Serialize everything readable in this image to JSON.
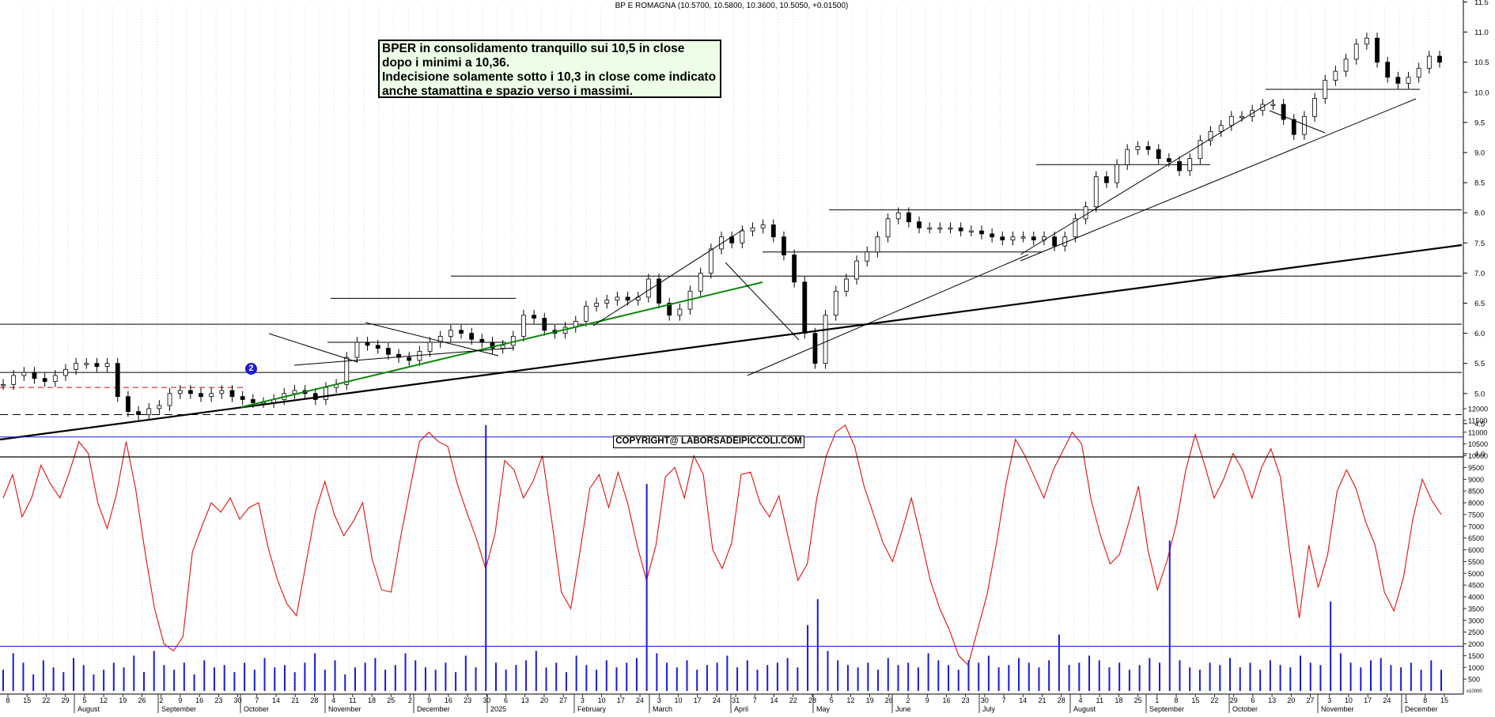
{
  "header": {
    "title": "BP E ROMAGNA (10.5700, 10.5800, 10.3600, 10.5050, +0.01500)"
  },
  "annotation": {
    "lines": [
      "BPER in consolidamento tranquillo sui 10,5 in close",
      "dopo i minimi a 10,36.",
      "Indecisione solamente sotto i 10,3 in close come indicato",
      "anche stamattina e spazio verso i massimi."
    ]
  },
  "copyright": "COPYRIGHT@ LABORSADEIPICCOLI.COM",
  "marker_label": "2",
  "colors": {
    "candle": "#000000",
    "green_trendline": "#0a8a0a",
    "red_dashed": "#e02020",
    "oscillator": "#e01010",
    "volume": "#1a1ad8",
    "panel_hline": "#1a1ad8"
  },
  "chart_data": [
    {
      "type": "candlestick",
      "title": "BP E ROMAGNA (10.5700, 10.5800, 10.3600, 10.5050, +0.01500)",
      "xlabel": "",
      "ylabel": "",
      "ylim": [
        4.0,
        11.1
      ],
      "y_ticks": [
        "4.0",
        "4.5",
        "5.0",
        "5.5",
        "6.0",
        "6.5",
        "7.0",
        "7.5",
        "8.0",
        "8.5",
        "9.0",
        "9.5",
        "10.0",
        "10.5",
        "11.0"
      ],
      "y_tick_top": "11.5",
      "x_day_labels": [
        "8",
        "15",
        "22",
        "29",
        "5",
        "12",
        "19",
        "26",
        "2",
        "9",
        "16",
        "23",
        "30",
        "7",
        "14",
        "21",
        "28",
        "4",
        "11",
        "18",
        "25",
        "2",
        "9",
        "16",
        "23",
        "30",
        "6",
        "13",
        "20",
        "27",
        "3",
        "10",
        "17",
        "24",
        "3",
        "10",
        "17",
        "24",
        "31",
        "7",
        "14",
        "22",
        "28",
        "5",
        "12",
        "19",
        "26",
        "2",
        "9",
        "16",
        "23",
        "30",
        "7",
        "14",
        "21",
        "28",
        "4",
        "11",
        "18",
        "25",
        "1",
        "8",
        "15",
        "22",
        "29",
        "6",
        "13",
        "20",
        "27",
        "3",
        "10",
        "17",
        "24",
        "1",
        "8",
        "15"
      ],
      "x_month_labels": [
        "August",
        "September",
        "October",
        "November",
        "December",
        "2025",
        "February",
        "March",
        "April",
        "May",
        "June",
        "July",
        "August",
        "September",
        "October",
        "November",
        "December"
      ],
      "horizontal_levels": [
        4.65,
        5.35,
        6.15,
        6.95,
        8.05
      ],
      "red_dashed_level": 5.1,
      "closes": [
        5.15,
        5.3,
        5.35,
        5.25,
        5.2,
        5.3,
        5.4,
        5.5,
        5.5,
        5.45,
        5.5,
        4.95,
        4.7,
        4.65,
        4.75,
        4.8,
        5.0,
        5.05,
        5.0,
        4.95,
        5.0,
        5.05,
        4.95,
        4.9,
        4.85,
        4.85,
        4.9,
        5.0,
        5.05,
        5.0,
        4.9,
        5.1,
        5.15,
        5.6,
        5.85,
        5.8,
        5.75,
        5.65,
        5.6,
        5.55,
        5.7,
        5.85,
        5.95,
        6.05,
        6.0,
        5.9,
        5.85,
        5.75,
        5.8,
        5.95,
        6.3,
        6.25,
        6.05,
        6.0,
        6.1,
        6.2,
        6.45,
        6.5,
        6.55,
        6.6,
        6.55,
        6.6,
        6.9,
        6.5,
        6.3,
        6.4,
        6.7,
        7.0,
        7.4,
        7.6,
        7.5,
        7.7,
        7.75,
        7.8,
        7.6,
        7.3,
        6.85,
        6.0,
        5.5,
        6.3,
        6.7,
        6.9,
        7.2,
        7.35,
        7.6,
        7.9,
        8.0,
        7.85,
        7.75,
        7.75,
        7.75,
        7.75,
        7.7,
        7.7,
        7.65,
        7.6,
        7.55,
        7.6,
        7.6,
        7.55,
        7.6,
        7.45,
        7.6,
        7.9,
        8.1,
        8.6,
        8.5,
        8.8,
        9.05,
        9.1,
        9.05,
        8.9,
        8.85,
        8.7,
        8.9,
        9.2,
        9.35,
        9.45,
        9.6,
        9.6,
        9.7,
        9.8,
        9.8,
        9.55,
        9.3,
        9.6,
        9.9,
        10.2,
        10.35,
        10.55,
        10.8,
        10.9,
        10.5,
        10.25,
        10.15,
        10.25,
        10.4,
        10.6,
        10.5
      ]
    },
    {
      "type": "line",
      "name_note": "oscillator (unlabeled)",
      "ylim": [
        0,
        12000
      ],
      "y_ticks": [
        "500",
        "1000",
        "1500",
        "2000",
        "2500",
        "3000",
        "3500",
        "4000",
        "4500",
        "5000",
        "5500",
        "6000",
        "6500",
        "7000",
        "7500",
        "8000",
        "8500",
        "9000",
        "9500",
        "10000",
        "10500",
        "11000",
        "11500",
        "12000"
      ],
      "y_unit_label": "x10000",
      "upper_level": 10800,
      "lower_level": 1900,
      "values": [
        8200,
        9200,
        7400,
        8200,
        9600,
        8800,
        8200,
        9300,
        10600,
        10100,
        8000,
        6900,
        8400,
        10600,
        8600,
        5900,
        3500,
        2000,
        1700,
        2300,
        5900,
        7000,
        8000,
        7600,
        8200,
        7300,
        7800,
        8000,
        6100,
        4700,
        3700,
        3200,
        5400,
        7600,
        8900,
        7500,
        6600,
        7200,
        8000,
        5600,
        4300,
        4200,
        6500,
        8600,
        10600,
        11000,
        10600,
        10400,
        8800,
        7600,
        6500,
        5200,
        6700,
        9800,
        9400,
        8200,
        8900,
        10000,
        7200,
        4200,
        3500,
        6000,
        8600,
        9200,
        7800,
        9300,
        8000,
        6200,
        4700,
        6200,
        9100,
        9500,
        8200,
        10000,
        9200,
        6000,
        5200,
        6300,
        9200,
        9300,
        8000,
        7400,
        8300,
        6500,
        4700,
        5400,
        8200,
        10000,
        11000,
        11300,
        10400,
        8700,
        7500,
        6300,
        5500,
        6800,
        8200,
        6500,
        4700,
        3500,
        2600,
        1500,
        1100,
        2600,
        4100,
        6300,
        8800,
        10700,
        10000,
        9100,
        8200,
        9400,
        10200,
        11000,
        10500,
        8100,
        6600,
        5400,
        5800,
        7200,
        8700,
        6000,
        4300,
        5500,
        7100,
        9400,
        10900,
        9600,
        8200,
        9000,
        10100,
        9400,
        8200,
        9500,
        10300,
        9100,
        5900,
        3100,
        6200,
        4400,
        5800,
        8500,
        9400,
        8600,
        7200,
        6200,
        4200,
        3400,
        4800,
        7300,
        9000,
        8100,
        7500
      ]
    },
    {
      "type": "bar",
      "name_note": "volume (unlabeled)",
      "ylim": [
        0,
        12000
      ],
      "values": [
        900,
        1600,
        1200,
        700,
        1300,
        1000,
        800,
        1400,
        1100,
        700,
        900,
        1200,
        1000,
        1500,
        800,
        1700,
        1100,
        900,
        1200,
        700,
        1300,
        1000,
        1100,
        800,
        1200,
        900,
        1400,
        1000,
        1100,
        800,
        1200,
        1600,
        900,
        1300,
        700,
        1000,
        1200,
        1400,
        900,
        1100,
        1600,
        1300,
        1000,
        900,
        1200,
        800,
        1500,
        1000,
        11300,
        1200,
        900,
        1100,
        1300,
        1700,
        1000,
        1200,
        800,
        1500,
        1100,
        900,
        1300,
        1000,
        1200,
        1400,
        8800,
        1600,
        1200,
        1000,
        1300,
        900,
        1100,
        1200,
        1500,
        1000,
        1300,
        900,
        1100,
        1200,
        1400,
        1000,
        2800,
        3900,
        1700,
        1300,
        1100,
        1000,
        1200,
        900,
        1400,
        1100,
        1200,
        1000,
        1600,
        1300,
        1100,
        900,
        1300,
        1200,
        1500,
        1000,
        1100,
        1400,
        1200,
        1000,
        1300,
        2400,
        1100,
        1200,
        1500,
        1300,
        1000,
        1200,
        900,
        1100,
        1400,
        1200,
        6400,
        1300,
        1000,
        900,
        1200,
        1100,
        1400,
        1000,
        1200,
        900,
        1300,
        1100,
        1000,
        1500,
        1200,
        1100,
        3800,
        1600,
        1200,
        1000,
        1300,
        1400,
        1100,
        1000,
        1200,
        900,
        1300,
        900
      ]
    }
  ]
}
